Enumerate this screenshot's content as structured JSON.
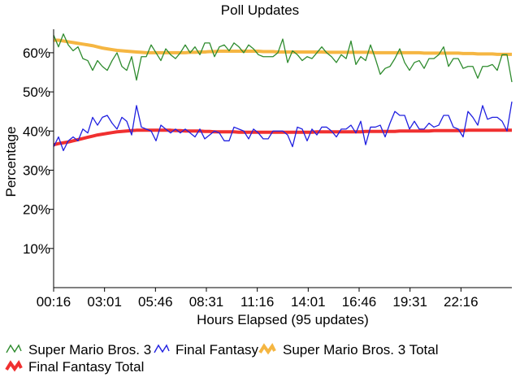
{
  "chart_data": {
    "type": "line",
    "title": "Poll Updates",
    "xlabel": "Hours Elapsed (95 updates)",
    "ylabel": "Percentage",
    "x_ticks": [
      "00:16",
      "03:01",
      "05:46",
      "08:31",
      "11:16",
      "14:01",
      "16:46",
      "19:31",
      "22:16"
    ],
    "y_ticks": [
      "10%",
      "20%",
      "30%",
      "40%",
      "50%",
      "60%"
    ],
    "ylim": [
      0,
      66
    ],
    "x_updates": 95,
    "grid": false,
    "legend_placement": "bottom",
    "series": [
      {
        "name": "Super Mario Bros. 3",
        "color": "#2e8b2e",
        "values": [
          64.5,
          61.5,
          64.8,
          62,
          60.5,
          61.5,
          58.5,
          58,
          55.5,
          58,
          56.5,
          55.5,
          58,
          60,
          56.5,
          55.5,
          59,
          53,
          59,
          59,
          62,
          60,
          58,
          61,
          59.5,
          58.5,
          60,
          62,
          60,
          61.5,
          59.5,
          62.5,
          62.5,
          59,
          61.5,
          62,
          60.5,
          62.5,
          61.5,
          60,
          62,
          61,
          59.5,
          59,
          59,
          59,
          60,
          63.5,
          57.5,
          60.5,
          59.5,
          58,
          59,
          58.5,
          60,
          61.5,
          60,
          59,
          57.5,
          59.5,
          58.5,
          63,
          57,
          59,
          58,
          62,
          58.5,
          54.5,
          56,
          56.5,
          58.5,
          61,
          57.5,
          55.5,
          57.5,
          58,
          56,
          58.5,
          58.5,
          59.5,
          61.5,
          56.5,
          58.5,
          58.5,
          56,
          56.5,
          56.5,
          53.5,
          56.5,
          56.5,
          57,
          55.5,
          59.5,
          59.5,
          52.5
        ]
      },
      {
        "name": "Final Fantasy",
        "color": "#2020e0",
        "values": [
          36,
          38.5,
          35,
          37.5,
          38.5,
          37.5,
          40.5,
          39.5,
          43.5,
          41.5,
          43.5,
          44,
          42,
          40.5,
          43.5,
          42.5,
          39,
          46.5,
          41,
          40.5,
          40,
          37.5,
          41.5,
          40.5,
          39.5,
          40.5,
          39.5,
          40.5,
          39.5,
          38.5,
          40.5,
          38,
          39,
          40,
          39.5,
          37.5,
          37.5,
          41,
          40.5,
          40,
          38,
          40.5,
          39.5,
          38,
          38,
          40,
          40,
          40,
          39,
          36,
          41,
          40.5,
          37.5,
          40.5,
          39,
          41,
          41,
          40,
          38.5,
          40.5,
          40.5,
          41.5,
          39.5,
          42.5,
          36.5,
          41,
          41,
          41.5,
          38.5,
          42,
          45,
          44,
          44,
          40.5,
          42.5,
          40.5,
          40.5,
          42,
          41,
          41.5,
          44,
          44,
          41,
          40.5,
          38.5,
          45,
          43.5,
          41.5,
          46.5,
          43,
          43.5,
          43.5,
          42.5,
          40,
          47.5
        ]
      },
      {
        "name": "Super Mario Bros. 3 Total",
        "color": "#f5b642",
        "values": [
          63.2,
          63.2,
          63,
          62.8,
          62.6,
          62.4,
          62.2,
          62,
          61.8,
          61.5,
          61.2,
          61,
          60.8,
          60.6,
          60.5,
          60.4,
          60.3,
          60.2,
          60.1,
          60,
          60,
          60,
          60,
          60,
          60,
          60,
          60,
          60,
          60.1,
          60.1,
          60.2,
          60.2,
          60.3,
          60.3,
          60.4,
          60.4,
          60.4,
          60.4,
          60.4,
          60.4,
          60.4,
          60.4,
          60.4,
          60.3,
          60.3,
          60.3,
          60.2,
          60.2,
          60.2,
          60.2,
          60.2,
          60.2,
          60.2,
          60.2,
          60.2,
          60.2,
          60.1,
          60.1,
          60.1,
          60.1,
          60.1,
          60.1,
          60.1,
          60.1,
          60.1,
          60.1,
          60,
          60,
          60,
          60,
          60,
          60,
          60,
          60,
          60,
          60,
          59.9,
          59.9,
          59.9,
          59.9,
          59.9,
          59.9,
          59.9,
          59.9,
          59.8,
          59.8,
          59.8,
          59.7,
          59.7,
          59.7,
          59.7,
          59.6,
          59.6,
          59.6,
          59.6
        ]
      },
      {
        "name": "Final Fantasy Total",
        "color": "#f03030",
        "values": [
          36.5,
          36.8,
          37,
          37.2,
          37.5,
          37.8,
          38.1,
          38.4,
          38.7,
          39,
          39.2,
          39.4,
          39.6,
          39.8,
          39.9,
          40,
          40.1,
          40.2,
          40.2,
          40.2,
          40.2,
          40.2,
          40.2,
          40.2,
          40.2,
          40.1,
          40.1,
          40,
          40,
          40,
          40,
          39.9,
          39.9,
          39.8,
          39.8,
          39.8,
          39.8,
          39.8,
          39.7,
          39.7,
          39.7,
          39.7,
          39.7,
          39.7,
          39.7,
          39.7,
          39.7,
          39.7,
          39.7,
          39.7,
          39.7,
          39.7,
          39.7,
          39.7,
          39.8,
          39.8,
          39.8,
          39.8,
          39.8,
          39.8,
          39.8,
          39.8,
          39.8,
          39.8,
          39.9,
          39.9,
          39.9,
          39.9,
          39.9,
          39.9,
          39.9,
          40,
          40,
          40,
          40,
          40,
          40,
          40,
          40.1,
          40.1,
          40.1,
          40.1,
          40.1,
          40.1,
          40.1,
          40.2,
          40.2,
          40.2,
          40.2,
          40.2,
          40.2,
          40.2,
          40.2,
          40.2,
          40.2
        ]
      }
    ]
  }
}
